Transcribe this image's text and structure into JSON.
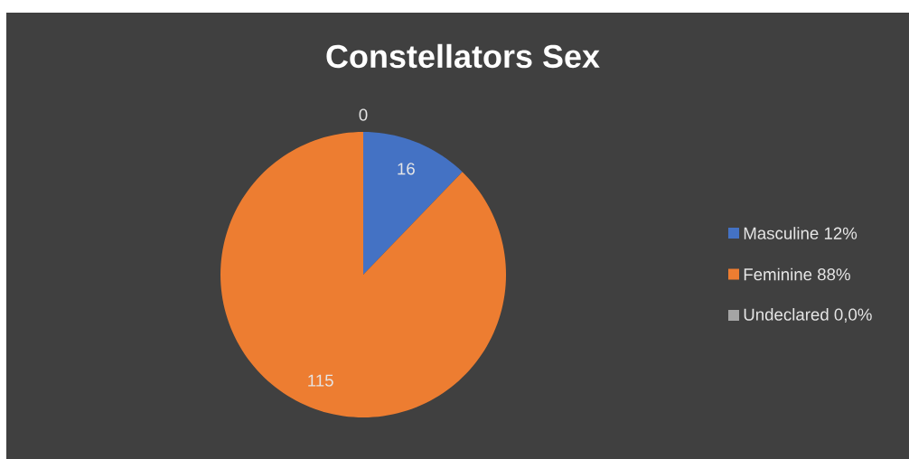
{
  "chart_data": {
    "type": "pie",
    "title": "Constellators Sex",
    "categories": [
      "Masculine 12%",
      "Feminine 88%",
      "Undeclared 0,0%"
    ],
    "values": [
      16,
      115,
      0
    ],
    "colors": [
      "#4472c4",
      "#ed7d31",
      "#a5a5a5"
    ],
    "value_labels": [
      "16",
      "115",
      "0"
    ],
    "legend": "right"
  }
}
